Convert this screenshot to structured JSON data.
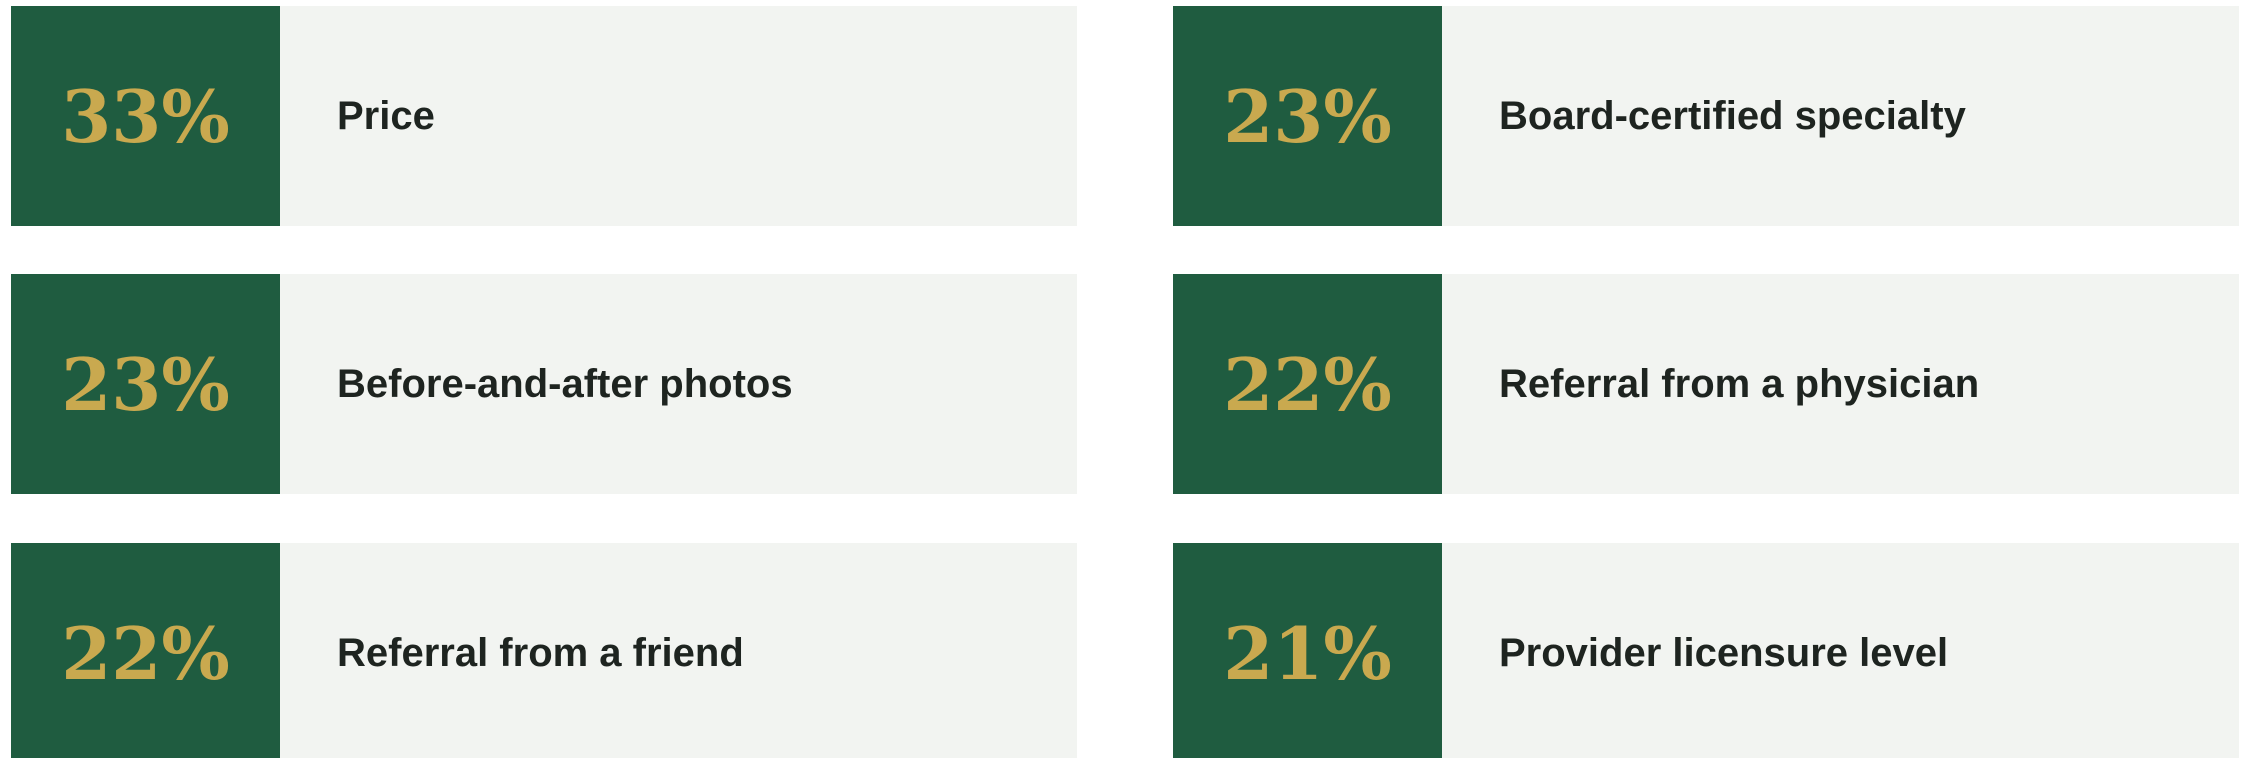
{
  "cards": [
    {
      "stat": "33%",
      "label": "Price"
    },
    {
      "stat": "23%",
      "label": "Board-certified specialty"
    },
    {
      "stat": "23%",
      "label": "Before-and-after photos"
    },
    {
      "stat": "22%",
      "label": "Referral from a physician"
    },
    {
      "stat": "22%",
      "label": "Referral from a friend"
    },
    {
      "stat": "21%",
      "label": "Provider licensure level"
    }
  ]
}
